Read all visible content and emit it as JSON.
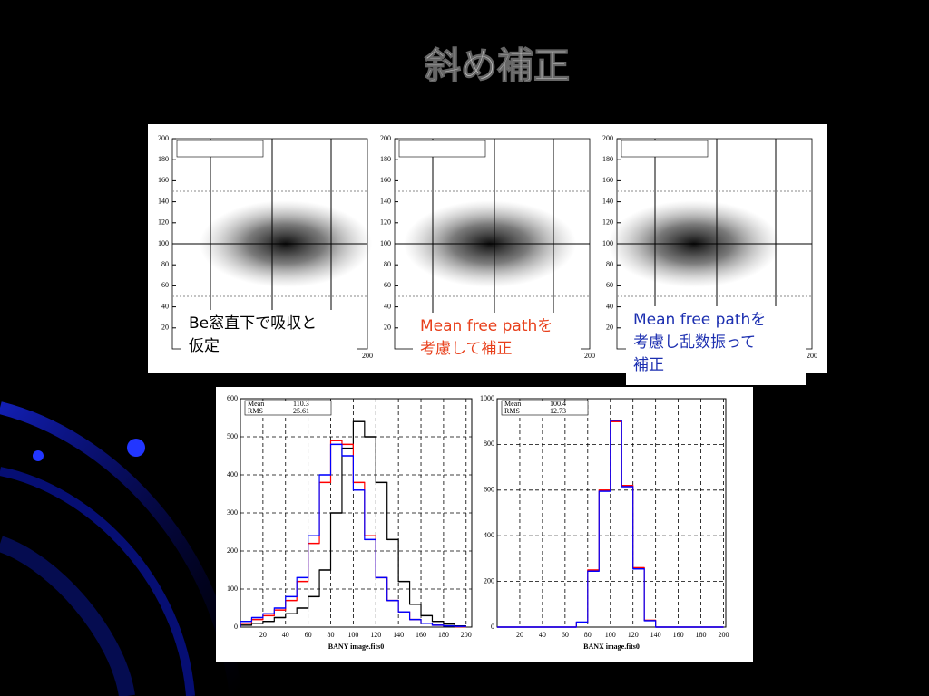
{
  "title": "斜め補正",
  "scatter_panels": {
    "yticks": [
      20,
      40,
      60,
      80,
      100,
      120,
      140,
      160,
      180,
      200
    ],
    "xtick": 200,
    "captions": [
      {
        "lines": [
          "Be窓直下で吸収と",
          "仮定"
        ],
        "color": "#000000"
      },
      {
        "lines": [
          "Mean free pathを",
          "考慮して補正"
        ],
        "color": "#e8401c"
      },
      {
        "lines": [
          "Mean free pathを",
          "考慮し乱数振って",
          "補正"
        ],
        "color": "#1c2fb0"
      }
    ]
  },
  "chart_data": [
    {
      "type": "histogram",
      "xlabel": "BANY image.fits0",
      "stats": [
        [
          "Mean",
          "110.3"
        ],
        [
          "RMS",
          "25.61"
        ]
      ],
      "bins": [
        0,
        10,
        20,
        30,
        40,
        50,
        60,
        70,
        80,
        90,
        100,
        110,
        120,
        130,
        140,
        150,
        160,
        170,
        180,
        190,
        200
      ],
      "xlim": [
        0,
        205
      ],
      "ylim": [
        0,
        600
      ],
      "xticks": [
        20,
        40,
        60,
        80,
        100,
        120,
        140,
        160,
        180,
        200
      ],
      "yticks": [
        0,
        100,
        200,
        300,
        400,
        500,
        600
      ],
      "series": [
        {
          "name": "black",
          "color": "#000000",
          "values": [
            5,
            10,
            15,
            25,
            35,
            50,
            80,
            150,
            300,
            470,
            540,
            500,
            380,
            230,
            120,
            60,
            30,
            15,
            8,
            3
          ]
        },
        {
          "name": "red",
          "color": "#ff0000",
          "values": [
            10,
            20,
            30,
            45,
            70,
            120,
            220,
            380,
            490,
            480,
            380,
            240,
            130,
            70,
            40,
            20,
            10,
            5,
            3,
            1
          ]
        },
        {
          "name": "blue",
          "color": "#0000ff",
          "values": [
            15,
            25,
            35,
            50,
            80,
            130,
            240,
            400,
            480,
            450,
            360,
            230,
            130,
            70,
            40,
            20,
            10,
            5,
            3,
            2
          ]
        }
      ]
    },
    {
      "type": "histogram",
      "xlabel": "BANX image.fits0",
      "stats": [
        [
          "Mean",
          "100.4"
        ],
        [
          "RMS",
          "12.73"
        ]
      ],
      "bins": [
        0,
        10,
        20,
        30,
        40,
        50,
        60,
        70,
        80,
        90,
        100,
        110,
        120,
        130,
        140,
        150,
        160,
        170,
        180,
        190,
        200
      ],
      "xlim": [
        0,
        202
      ],
      "ylim": [
        0,
        1000
      ],
      "xticks": [
        20,
        40,
        60,
        80,
        100,
        120,
        140,
        160,
        180,
        200
      ],
      "yticks": [
        0,
        200,
        400,
        600,
        800,
        1000
      ],
      "series": [
        {
          "name": "red",
          "color": "#ff0000",
          "values": [
            0,
            0,
            0,
            0,
            0,
            0,
            0,
            20,
            250,
            600,
            900,
            620,
            260,
            30,
            0,
            0,
            0,
            0,
            0,
            0
          ]
        },
        {
          "name": "blue",
          "color": "#0000ff",
          "values": [
            0,
            0,
            0,
            0,
            0,
            0,
            0,
            22,
            245,
            595,
            905,
            615,
            255,
            28,
            0,
            0,
            0,
            0,
            0,
            0
          ]
        }
      ]
    }
  ]
}
